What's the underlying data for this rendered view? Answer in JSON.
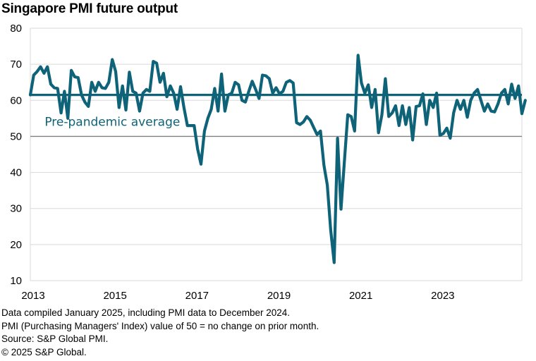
{
  "title": "Singapore PMI future output",
  "footer": {
    "line1": "Data compiled January 2025, including PMI data to December 2024.",
    "line2": "PMI (Purchasing Managers' Index) value of 50 = no change on prior month.",
    "line3": "Source: S&P Global PMI.",
    "line4": "© 2025 S&P Global."
  },
  "colors": {
    "series": "#0e6378",
    "grid": "#d9d9d9",
    "baseline": "#808080"
  },
  "chart_data": {
    "type": "line",
    "title": "Singapore PMI future output",
    "xlabel": "",
    "ylabel": "",
    "ylim": [
      10,
      80
    ],
    "yticks": [
      10,
      20,
      30,
      40,
      50,
      60,
      70,
      80
    ],
    "xlim": [
      2013.0,
      2025.0
    ],
    "xticks": [
      2013,
      2015,
      2017,
      2019,
      2021,
      2023
    ],
    "grid": true,
    "reference_line": {
      "value": 50
    },
    "series": [
      {
        "name": "Singapore PMI future output",
        "start": "2013-01",
        "frequency": "monthly",
        "values": [
          61.5,
          67.0,
          68.0,
          69.3,
          67.5,
          69.3,
          64.5,
          63.5,
          63.3,
          56.5,
          62.5,
          55.0,
          68.3,
          66.5,
          66.3,
          61.5,
          59.5,
          58.3,
          65.0,
          62.5,
          65.0,
          63.5,
          63.3,
          65.0,
          71.3,
          68.0,
          58.0,
          64.0,
          57.3,
          67.8,
          62.5,
          62.0,
          57.0,
          62.0,
          63.0,
          62.5,
          70.8,
          70.3,
          65.0,
          67.5,
          61.0,
          64.0,
          62.0,
          57.5,
          63.8,
          58.0,
          53.0,
          53.0,
          53.0,
          46.5,
          42.3,
          51.5,
          55.0,
          57.5,
          63.3,
          57.0,
          67.3,
          57.0,
          61.5,
          62.0,
          65.0,
          64.3,
          60.0,
          59.5,
          62.5,
          65.3,
          63.0,
          60.5,
          67.0,
          66.8,
          66.0,
          62.0,
          63.5,
          61.8,
          62.5,
          65.0,
          65.5,
          64.8,
          53.8,
          53.3,
          54.0,
          55.5,
          54.5,
          52.5,
          50.5,
          51.5,
          42.0,
          36.5,
          24.0,
          15.0,
          49.5,
          29.8,
          43.0,
          56.0,
          55.5,
          51.5,
          72.5,
          64.8,
          62.0,
          64.3,
          58.0,
          63.0,
          51.0,
          56.0,
          66.0,
          55.5,
          56.5,
          58.5,
          53.0,
          58.5,
          53.3,
          58.0,
          49.0,
          58.3,
          58.5,
          61.8,
          53.3,
          60.0,
          58.0,
          62.0,
          50.3,
          50.8,
          52.3,
          49.5,
          56.5,
          60.0,
          57.5,
          60.0,
          55.3,
          60.0,
          62.0,
          63.0,
          60.0,
          57.0,
          59.0,
          57.0,
          56.8,
          59.0,
          62.0,
          63.0,
          59.0,
          64.5,
          60.5,
          64.0,
          56.3,
          60.0
        ]
      },
      {
        "name": "Pre-pandemic average",
        "constant": 61.5
      }
    ],
    "annotations": [
      {
        "text": "Pre-pandemic average",
        "x": 2013.35,
        "y": 52.9
      }
    ]
  }
}
